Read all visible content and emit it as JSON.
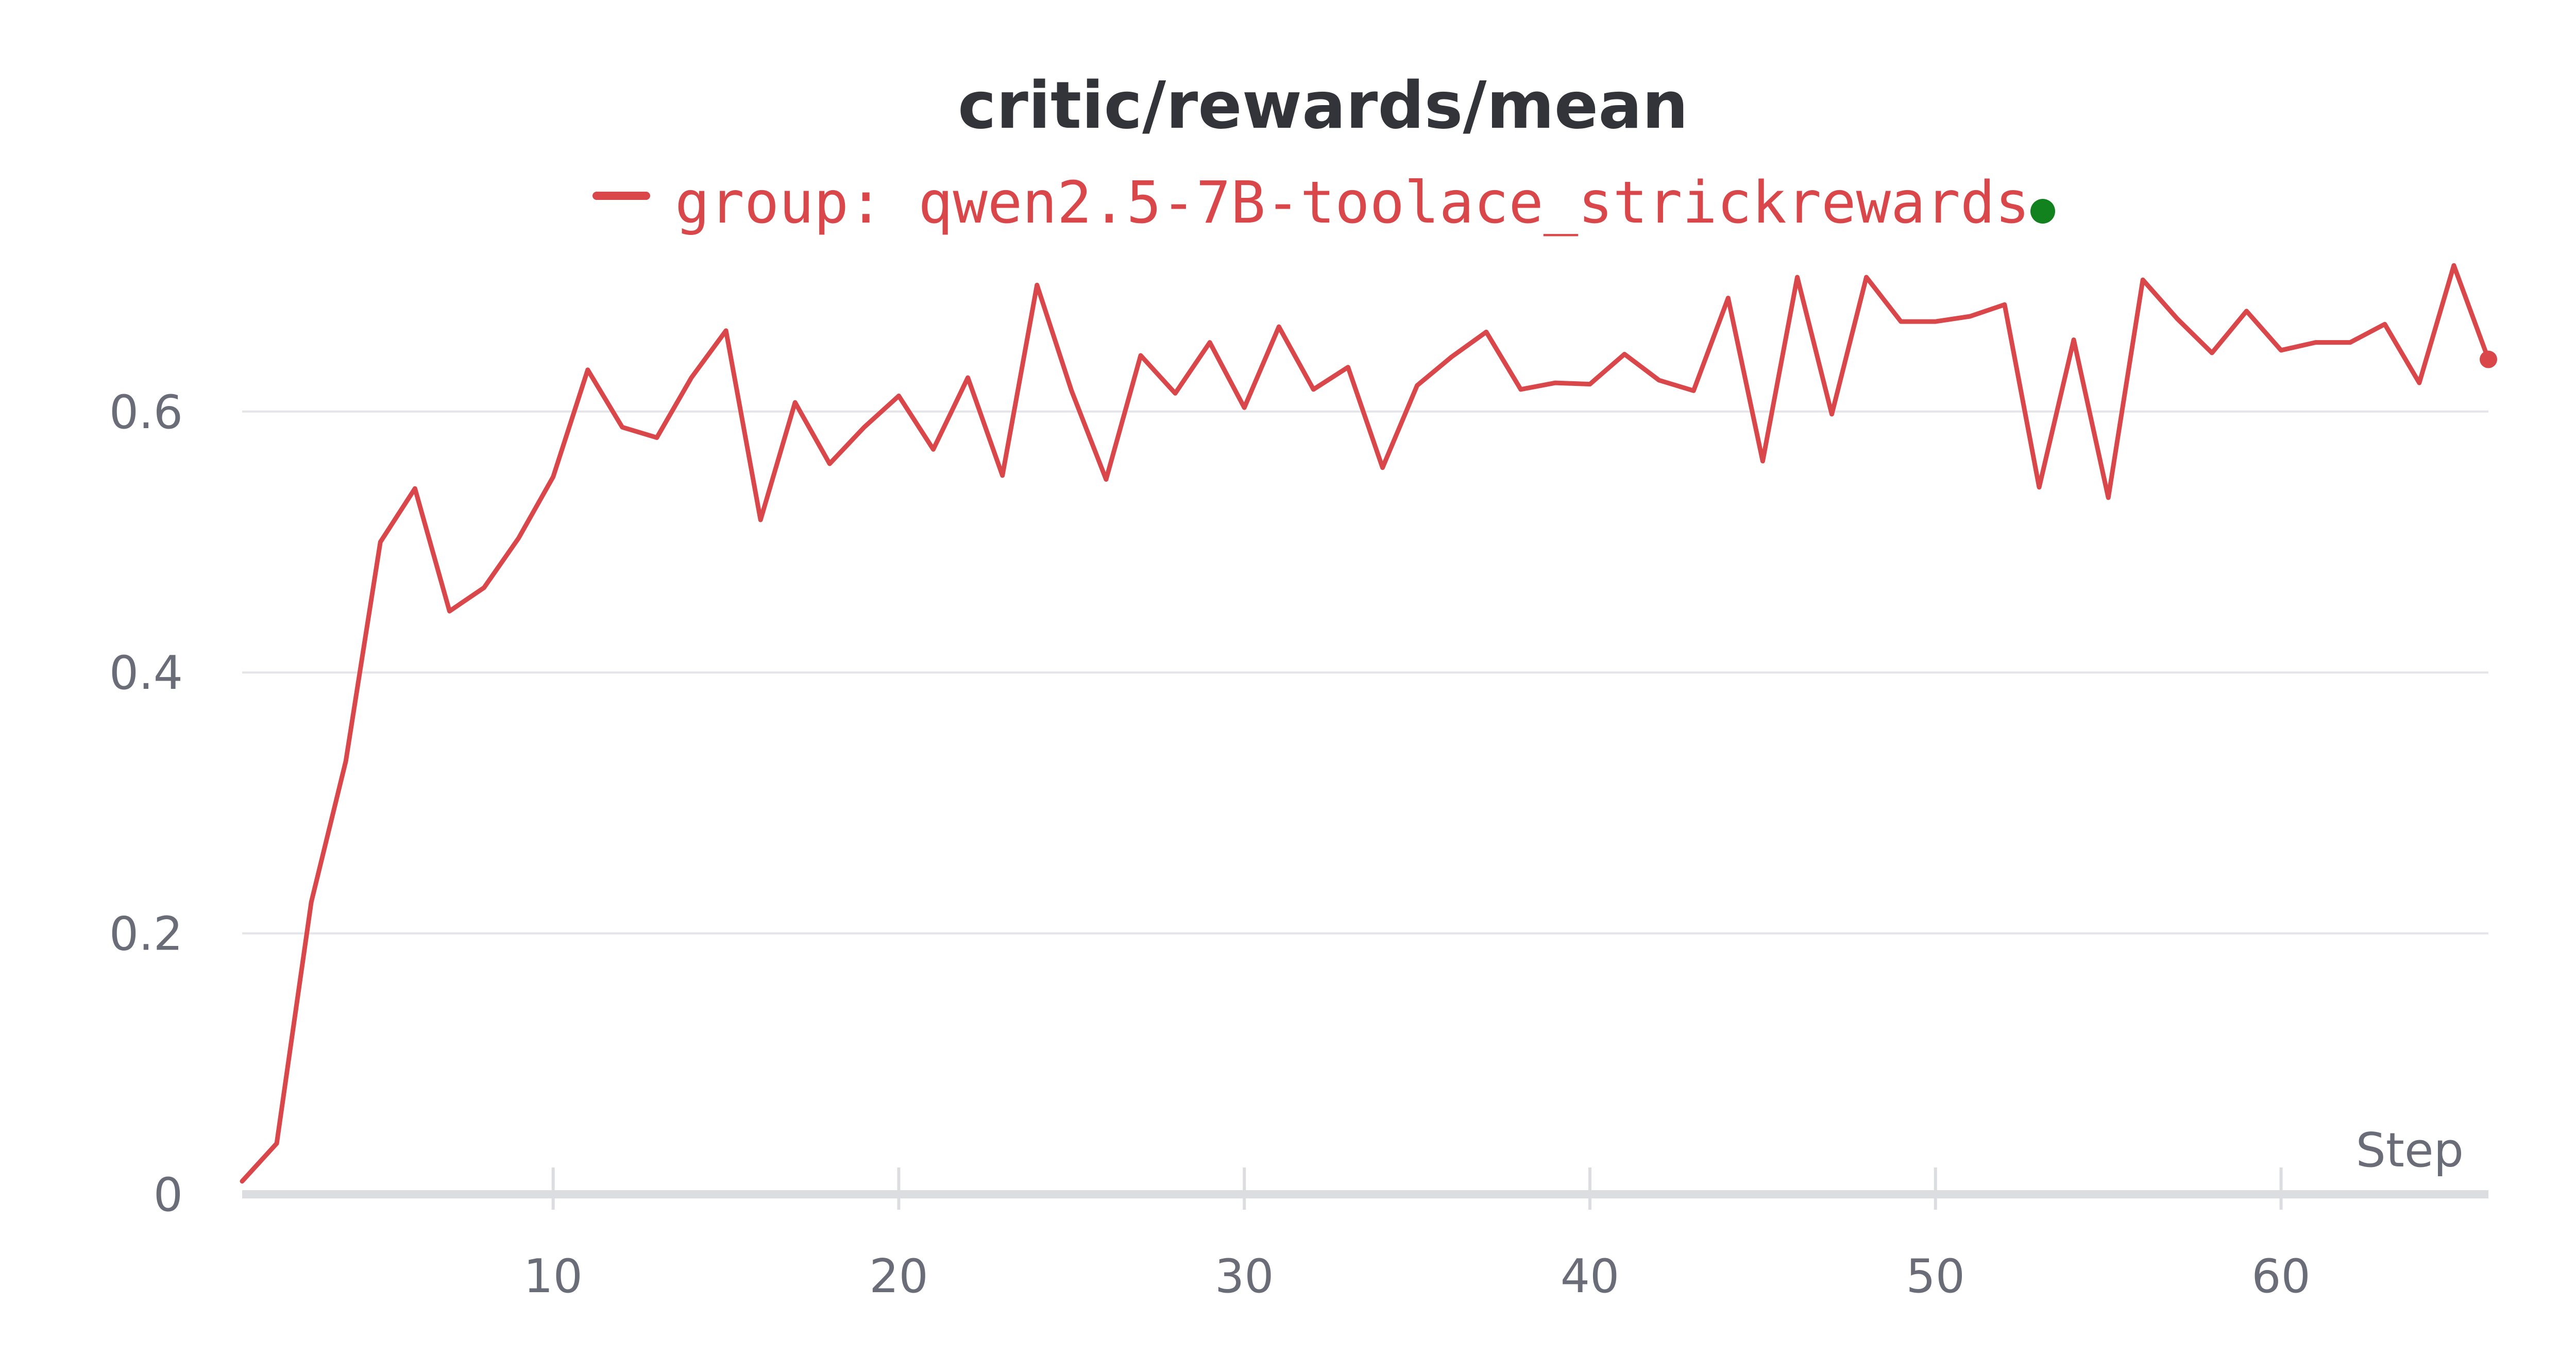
{
  "chart_data": {
    "type": "line",
    "title": "critic/rewards/mean",
    "xlabel": "Step",
    "ylabel": "",
    "xlim": [
      1,
      66
    ],
    "ylim": [
      0,
      0.72
    ],
    "x_ticks": [
      10,
      20,
      30,
      40,
      50,
      60
    ],
    "y_ticks": [
      0,
      0.2,
      0.4,
      0.6
    ],
    "y_tick_labels": [
      "0",
      "0.2",
      "0.4",
      "0.6"
    ],
    "grid": "horizontal",
    "legend_position": "top-center",
    "series": [
      {
        "name": "group: qwen2.5-7B-toolace_strickrewards",
        "color": "#d9474a",
        "status_color": "#12821f",
        "x": [
          1,
          2,
          3,
          4,
          5,
          6,
          7,
          8,
          9,
          10,
          11,
          12,
          13,
          14,
          15,
          16,
          17,
          18,
          19,
          20,
          21,
          22,
          23,
          24,
          25,
          26,
          27,
          28,
          29,
          30,
          31,
          32,
          33,
          34,
          35,
          36,
          37,
          38,
          39,
          40,
          41,
          42,
          43,
          44,
          45,
          46,
          47,
          48,
          49,
          50,
          51,
          52,
          53,
          54,
          55,
          56,
          57,
          58,
          59,
          60,
          61,
          62,
          63,
          64,
          65,
          66
        ],
        "values": [
          0.01,
          0.039,
          0.224,
          0.332,
          0.5,
          0.541,
          0.447,
          0.465,
          0.503,
          0.55,
          0.632,
          0.588,
          0.58,
          0.626,
          0.662,
          0.517,
          0.607,
          0.56,
          0.588,
          0.612,
          0.571,
          0.626,
          0.551,
          0.697,
          0.616,
          0.548,
          0.643,
          0.614,
          0.653,
          0.603,
          0.665,
          0.617,
          0.634,
          0.557,
          0.62,
          0.642,
          0.661,
          0.617,
          0.622,
          0.621,
          0.644,
          0.624,
          0.616,
          0.687,
          0.562,
          0.703,
          0.598,
          0.703,
          0.669,
          0.669,
          0.673,
          0.682,
          0.542,
          0.655,
          0.534,
          0.701,
          0.671,
          0.645,
          0.677,
          0.647,
          0.653,
          0.653,
          0.667,
          0.622,
          0.712,
          0.64
        ]
      }
    ]
  }
}
